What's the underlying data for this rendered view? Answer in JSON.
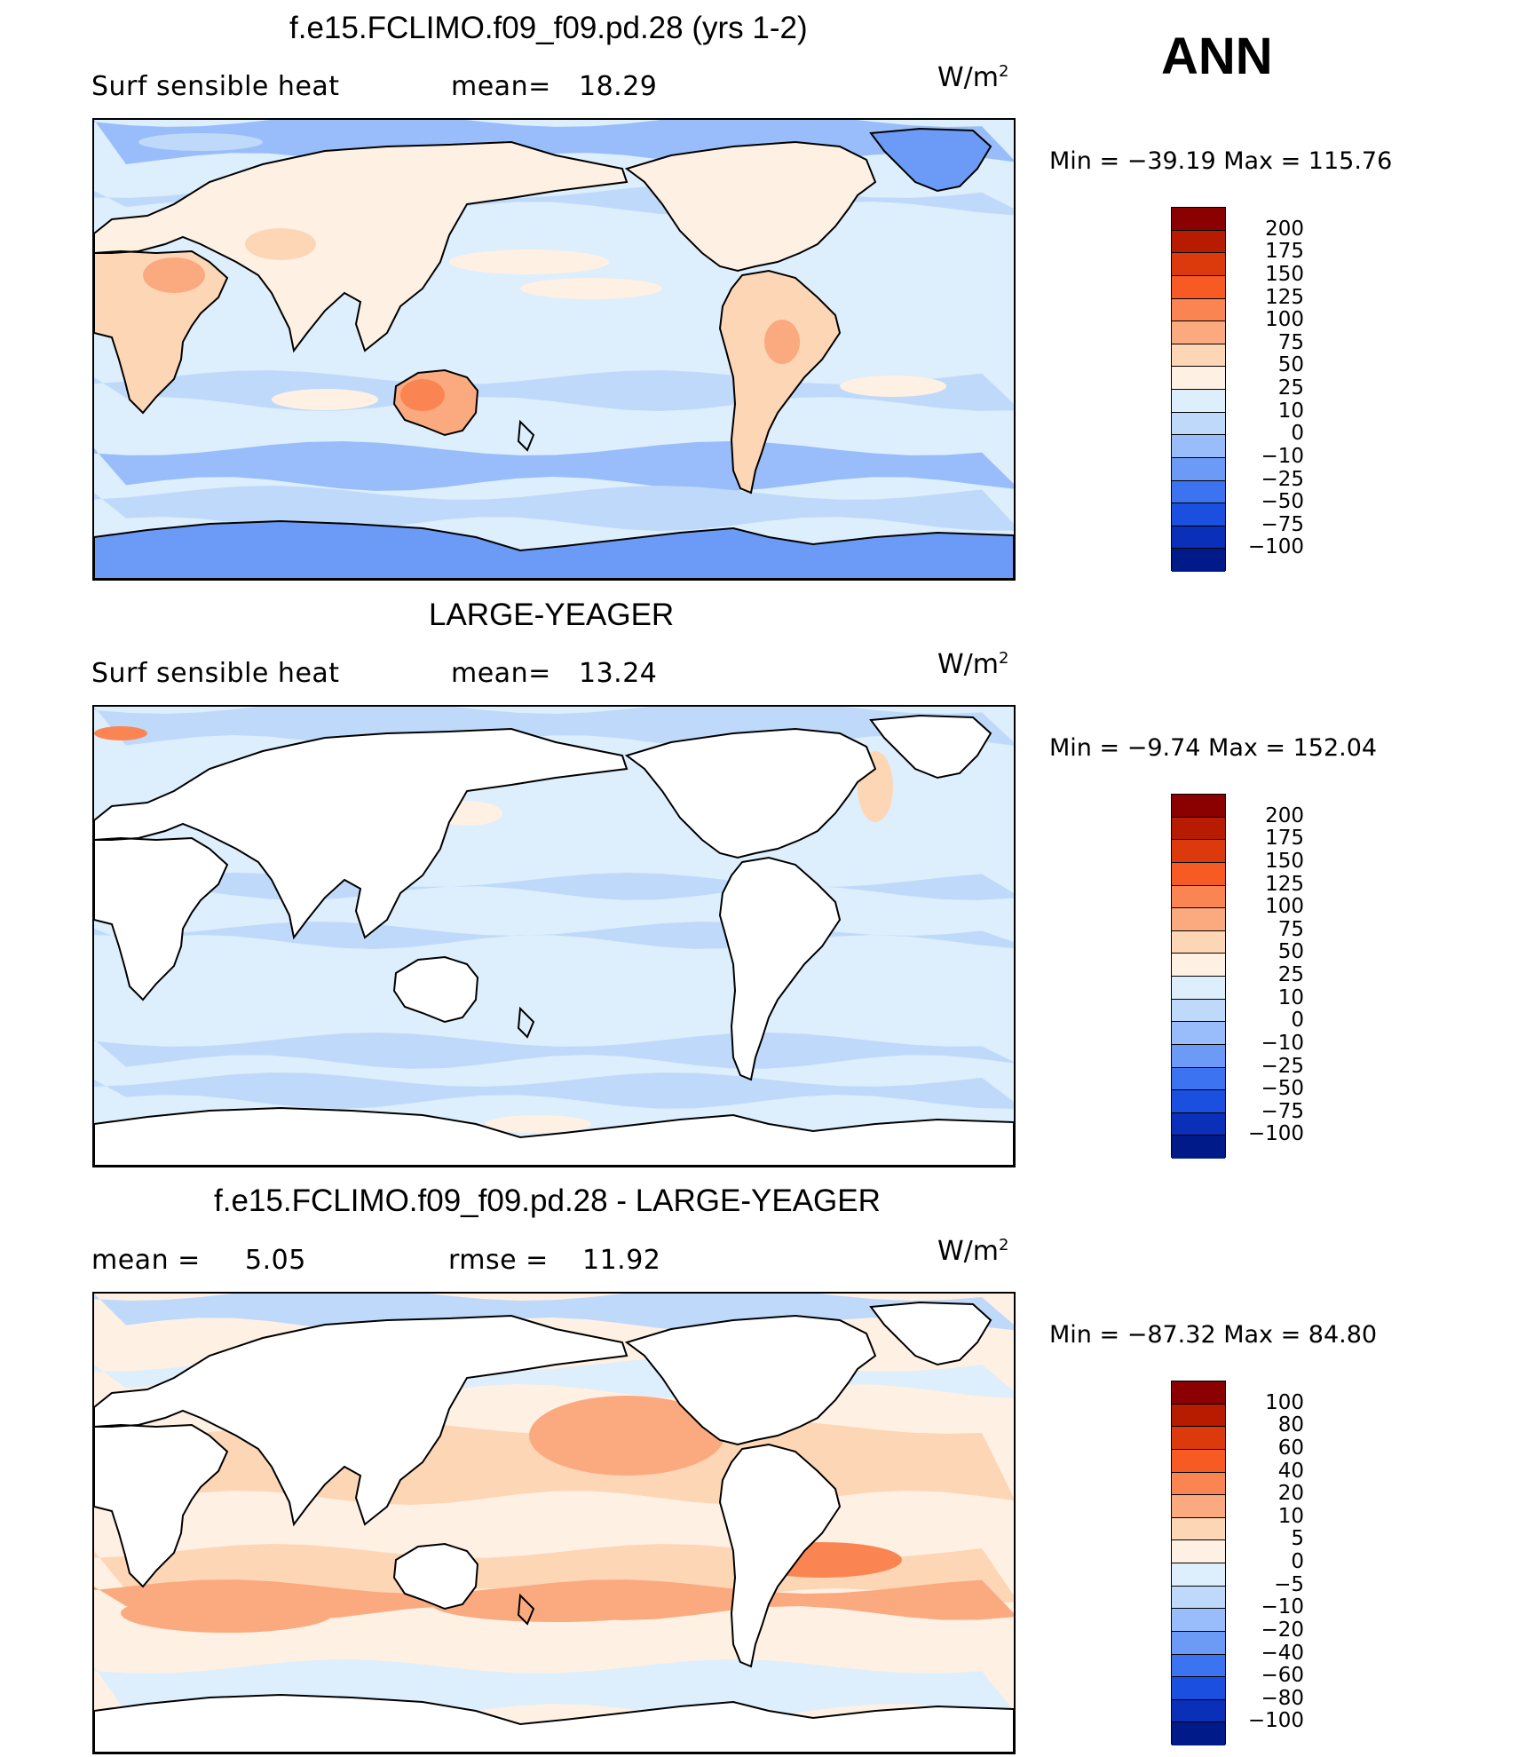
{
  "season": "ANN",
  "panels": [
    {
      "title": "f.e15.FCLIMO.f09_f09.pd.28 (yrs 1-2)",
      "left_label": "Surf  sensible  heat",
      "stat1_label": "mean=",
      "stat1_value": "18.29",
      "stat2_label": "",
      "stat2_value": "",
      "units": "W/m",
      "units_sup": "2",
      "minmax": "Min  =  −39.19  Max  =  115.76",
      "colorbar": {
        "ticks": [
          "200",
          "175",
          "150",
          "125",
          "100",
          "75",
          "50",
          "25",
          "10",
          "0",
          "−10",
          "−25",
          "−50",
          "−75",
          "−100"
        ],
        "colors": [
          "#8b0000",
          "#b71c00",
          "#dc3a0c",
          "#f75a22",
          "#fb8552",
          "#fbaa80",
          "#fdd6b6",
          "#fff0e4",
          "#ddeefc",
          "#bfd9fb",
          "#98bdfa",
          "#6b9bf7",
          "#3b73f0",
          "#1a4fe0",
          "#0a2fb8",
          "#001a8a"
        ]
      },
      "field": "model_shf"
    },
    {
      "title": "LARGE-YEAGER",
      "left_label": "Surf  sensible  heat",
      "stat1_label": "mean=",
      "stat1_value": "13.24",
      "stat2_label": "",
      "stat2_value": "",
      "units": "W/m",
      "units_sup": "2",
      "minmax": "Min  =    −9.74  Max  =  152.04",
      "colorbar": {
        "ticks": [
          "200",
          "175",
          "150",
          "125",
          "100",
          "75",
          "50",
          "25",
          "10",
          "0",
          "−10",
          "−25",
          "−50",
          "−75",
          "−100"
        ],
        "colors": [
          "#8b0000",
          "#b71c00",
          "#dc3a0c",
          "#f75a22",
          "#fb8552",
          "#fbaa80",
          "#fdd6b6",
          "#fff0e4",
          "#ddeefc",
          "#bfd9fb",
          "#98bdfa",
          "#6b9bf7",
          "#3b73f0",
          "#1a4fe0",
          "#0a2fb8",
          "#001a8a"
        ]
      },
      "field": "obs_shf"
    },
    {
      "title": "f.e15.FCLIMO.f09_f09.pd.28 - LARGE-YEAGER",
      "left_label": "mean  =",
      "stat1_label": "",
      "stat1_value": "5.05",
      "stat2_label": "rmse  =",
      "stat2_value": "11.92",
      "units": "W/m",
      "units_sup": "2",
      "minmax": "Min  =  −87.32  Max  =    84.80",
      "colorbar": {
        "ticks": [
          "100",
          "80",
          "60",
          "40",
          "20",
          "10",
          "5",
          "0",
          "−5",
          "−10",
          "−20",
          "−40",
          "−60",
          "−80",
          "−100"
        ],
        "colors": [
          "#8b0000",
          "#b71c00",
          "#dc3a0c",
          "#f75a22",
          "#fb8552",
          "#fbaa80",
          "#fdd6b6",
          "#fff0e4",
          "#ddeefc",
          "#bfd9fb",
          "#98bdfa",
          "#6b9bf7",
          "#3b73f0",
          "#1a4fe0",
          "#0a2fb8",
          "#001a8a"
        ]
      },
      "field": "difference"
    }
  ],
  "chart_data": [
    {
      "type": "heatmap",
      "title": "f.e15.FCLIMO.f09_f09.pd.28 (yrs 1-2)",
      "variable": "Surf sensible heat",
      "units": "W/m2",
      "mean": 18.29,
      "min": -39.19,
      "max": 115.76,
      "contour_levels": [
        -100,
        -75,
        -50,
        -25,
        -10,
        0,
        10,
        25,
        50,
        75,
        100,
        125,
        150,
        175,
        200
      ],
      "projection": "cylindrical equidistant, centered on Pacific"
    },
    {
      "type": "heatmap",
      "title": "LARGE-YEAGER",
      "variable": "Surf sensible heat",
      "units": "W/m2",
      "mean": 13.24,
      "min": -9.74,
      "max": 152.04,
      "contour_levels": [
        -100,
        -75,
        -50,
        -25,
        -10,
        0,
        10,
        25,
        50,
        75,
        100,
        125,
        150,
        175,
        200
      ],
      "land_masked": true
    },
    {
      "type": "heatmap",
      "title": "f.e15.FCLIMO.f09_f09.pd.28 - LARGE-YEAGER",
      "units": "W/m2",
      "mean": 5.05,
      "rmse": 11.92,
      "min": -87.32,
      "max": 84.8,
      "contour_levels": [
        -100,
        -80,
        -60,
        -40,
        -20,
        -10,
        -5,
        0,
        5,
        10,
        20,
        40,
        60,
        80,
        100
      ],
      "land_masked": true
    }
  ]
}
